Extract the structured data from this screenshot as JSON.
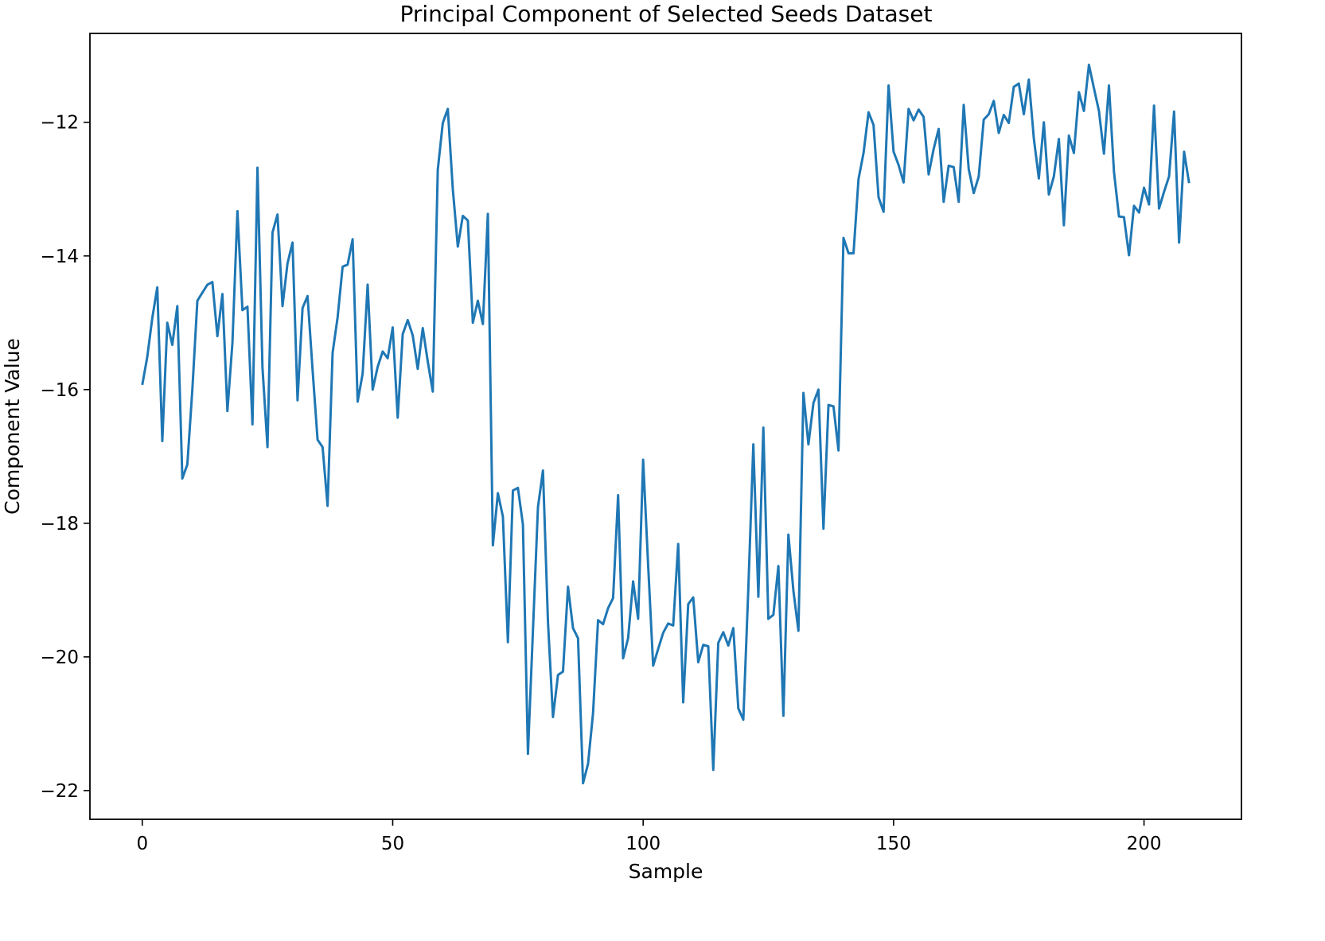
{
  "chart_data": {
    "type": "line",
    "title": "Principal Component of Selected Seeds Dataset",
    "xlabel": "Sample",
    "ylabel": "Component Value",
    "xlim": [
      -10.45,
      219.45
    ],
    "ylim": [
      -22.43,
      -10.67
    ],
    "xticks": [
      0,
      50,
      100,
      150,
      200
    ],
    "xtick_labels": [
      "0",
      "50",
      "100",
      "150",
      "200"
    ],
    "yticks": [
      -22,
      -20,
      -18,
      -16,
      -14,
      -12
    ],
    "ytick_labels": [
      "−22",
      "−20",
      "−18",
      "−16",
      "−14",
      "−12"
    ],
    "grid": false,
    "legend": "none",
    "line_color": "#1f77b4",
    "series": [
      {
        "x": [
          0,
          1,
          2,
          3,
          4,
          5,
          6,
          7,
          8,
          9,
          10,
          11,
          12,
          13,
          14,
          15,
          16,
          17,
          18,
          19,
          20,
          21,
          22,
          23,
          24,
          25,
          26,
          27,
          28,
          29,
          30,
          31,
          32,
          33,
          34,
          35,
          36,
          37,
          38,
          39,
          40,
          41,
          42,
          43,
          44,
          45,
          46,
          47,
          48,
          49,
          50,
          51,
          52,
          53,
          54,
          55,
          56,
          57,
          58,
          59,
          60,
          61,
          62,
          63,
          64,
          65,
          66,
          67,
          68,
          69,
          70,
          71,
          72,
          73,
          74,
          75,
          76,
          77,
          78,
          79,
          80,
          81,
          82,
          83,
          84,
          85,
          86,
          87,
          88,
          89,
          90,
          91,
          92,
          93,
          94,
          95,
          96,
          97,
          98,
          99,
          100,
          101,
          102,
          103,
          104,
          105,
          106,
          107,
          108,
          109,
          110,
          111,
          112,
          113,
          114,
          115,
          116,
          117,
          118,
          119,
          120,
          121,
          122,
          123,
          124,
          125,
          126,
          127,
          128,
          129,
          130,
          131,
          132,
          133,
          134,
          135,
          136,
          137,
          138,
          139,
          140,
          141,
          142,
          143,
          144,
          145,
          146,
          147,
          148,
          149,
          150,
          151,
          152,
          153,
          154,
          155,
          156,
          157,
          158,
          159,
          160,
          161,
          162,
          163,
          164,
          165,
          166,
          167,
          168,
          169,
          170,
          171,
          172,
          173,
          174,
          175,
          176,
          177,
          178,
          179,
          180,
          181,
          182,
          183,
          184,
          185,
          186,
          187,
          188,
          189,
          190,
          191,
          192,
          193,
          194,
          195,
          196,
          197,
          198,
          199,
          200,
          201,
          202,
          203,
          204,
          205,
          206,
          207,
          208,
          209
        ],
        "y": [
          -15.93,
          -15.51,
          -14.93,
          -14.47,
          -16.77,
          -15.0,
          -15.33,
          -14.75,
          -17.33,
          -17.12,
          -16.0,
          -14.67,
          -14.55,
          -14.43,
          -14.39,
          -15.2,
          -14.57,
          -16.32,
          -15.3,
          -13.33,
          -14.81,
          -14.76,
          -16.52,
          -12.68,
          -15.67,
          -16.86,
          -13.65,
          -13.38,
          -14.75,
          -14.11,
          -13.8,
          -16.16,
          -14.78,
          -14.6,
          -15.7,
          -16.75,
          -16.86,
          -17.74,
          -15.45,
          -14.92,
          -14.16,
          -14.13,
          -13.75,
          -16.18,
          -15.76,
          -14.43,
          -16.0,
          -15.66,
          -15.43,
          -15.53,
          -15.07,
          -16.42,
          -15.17,
          -14.96,
          -15.19,
          -15.69,
          -15.08,
          -15.58,
          -16.03,
          -12.71,
          -12.01,
          -11.8,
          -13.0,
          -13.86,
          -13.4,
          -13.47,
          -15.0,
          -14.67,
          -15.02,
          -13.37,
          -18.33,
          -17.55,
          -17.9,
          -19.78,
          -17.51,
          -17.47,
          -18.02,
          -21.45,
          -19.6,
          -17.76,
          -17.21,
          -19.48,
          -20.9,
          -20.27,
          -20.22,
          -18.95,
          -19.57,
          -19.72,
          -21.89,
          -21.6,
          -20.84,
          -19.45,
          -19.51,
          -19.27,
          -19.12,
          -17.58,
          -20.02,
          -19.72,
          -18.87,
          -19.43,
          -17.05,
          -18.63,
          -20.13,
          -19.88,
          -19.64,
          -19.5,
          -19.53,
          -18.31,
          -20.68,
          -19.21,
          -19.11,
          -20.08,
          -19.82,
          -19.84,
          -21.69,
          -19.79,
          -19.63,
          -19.83,
          -19.57,
          -20.77,
          -20.94,
          -18.98,
          -16.82,
          -19.1,
          -16.57,
          -19.43,
          -19.37,
          -18.64,
          -20.88,
          -18.17,
          -19.01,
          -19.61,
          -16.05,
          -16.82,
          -16.2,
          -16.0,
          -18.08,
          -16.23,
          -16.25,
          -16.91,
          -13.73,
          -13.96,
          -13.96,
          -12.85,
          -12.46,
          -11.85,
          -12.04,
          -13.12,
          -13.34,
          -11.45,
          -12.44,
          -12.64,
          -12.9,
          -11.8,
          -11.97,
          -11.81,
          -11.92,
          -12.78,
          -12.4,
          -12.1,
          -13.19,
          -12.65,
          -12.67,
          -13.19,
          -11.74,
          -12.7,
          -13.06,
          -12.81,
          -11.96,
          -11.88,
          -11.68,
          -12.16,
          -11.89,
          -12.01,
          -11.47,
          -11.42,
          -11.88,
          -11.36,
          -12.24,
          -12.84,
          -12.0,
          -13.08,
          -12.81,
          -12.25,
          -13.54,
          -12.2,
          -12.46,
          -11.55,
          -11.83,
          -11.14,
          -11.49,
          -11.83,
          -12.47,
          -11.45,
          -12.74,
          -13.41,
          -13.42,
          -13.99,
          -13.25,
          -13.35,
          -12.98,
          -13.23,
          -11.75,
          -13.29,
          -13.04,
          -12.81,
          -11.84,
          -13.8,
          -12.44,
          -12.91
        ]
      }
    ]
  }
}
